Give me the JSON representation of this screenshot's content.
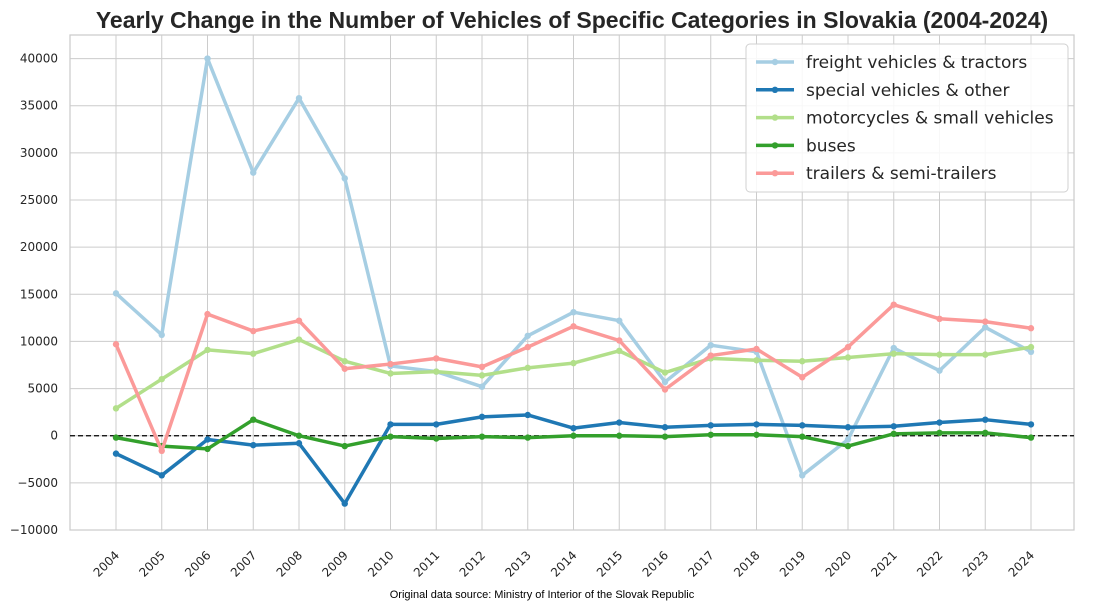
{
  "chart_data": {
    "type": "line",
    "title": "Yearly Change in the Number of Vehicles of Specific Categories in Slovakia (2004-2024)",
    "xlabel": "",
    "ylabel": "",
    "x": [
      "2004",
      "2005",
      "2006",
      "2007",
      "2008",
      "2009",
      "2010",
      "2011",
      "2012",
      "2013",
      "2014",
      "2015",
      "2016",
      "2017",
      "2018",
      "2019",
      "2020",
      "2021",
      "2022",
      "2023",
      "2024"
    ],
    "ylim": [
      -10000,
      42500
    ],
    "yticks": [
      "−10000",
      "−5000",
      "0",
      "5000",
      "10000",
      "15000",
      "20000",
      "25000",
      "30000",
      "35000",
      "40000"
    ],
    "ytick_values": [
      -10000,
      -5000,
      0,
      5000,
      10000,
      15000,
      20000,
      25000,
      30000,
      35000,
      40000
    ],
    "grid": true,
    "legend_position": "top-right",
    "zero_line": "dashed",
    "series": [
      {
        "name": "freight vehicles & tractors",
        "color": "#a6cee3",
        "values": [
          15100,
          10700,
          40000,
          27900,
          35800,
          27300,
          7400,
          6800,
          5200,
          10600,
          13100,
          12200,
          5700,
          9600,
          8900,
          -4200,
          -400,
          9300,
          6900,
          11500,
          8900
        ]
      },
      {
        "name": "special vehicles & other",
        "color": "#1f78b4",
        "values": [
          -1900,
          -4200,
          -400,
          -1000,
          -800,
          -7200,
          1200,
          1200,
          2000,
          2200,
          800,
          1400,
          900,
          1100,
          1200,
          1100,
          900,
          1000,
          1400,
          1700,
          1200
        ]
      },
      {
        "name": "motorcycles & small vehicles",
        "color": "#b2df8a",
        "values": [
          2900,
          6000,
          9100,
          8700,
          10200,
          7900,
          6600,
          6800,
          6400,
          7200,
          7700,
          9000,
          6700,
          8200,
          8000,
          7900,
          8300,
          8700,
          8600,
          8600,
          9400
        ]
      },
      {
        "name": "buses",
        "color": "#33a02c",
        "values": [
          -200,
          -1100,
          -1400,
          1700,
          0,
          -1100,
          -100,
          -300,
          -100,
          -200,
          0,
          0,
          -100,
          100,
          100,
          -100,
          -1100,
          200,
          300,
          300,
          -200
        ]
      },
      {
        "name": "trailers & semi-trailers",
        "color": "#fb9a99",
        "values": [
          9700,
          -1600,
          12900,
          11100,
          12200,
          7100,
          7600,
          8200,
          7300,
          9400,
          11600,
          10100,
          4900,
          8500,
          9200,
          6200,
          9400,
          13900,
          12400,
          12100,
          11400
        ]
      }
    ],
    "source_note": "Original data source: Ministry of Interior of the Slovak Republic"
  }
}
